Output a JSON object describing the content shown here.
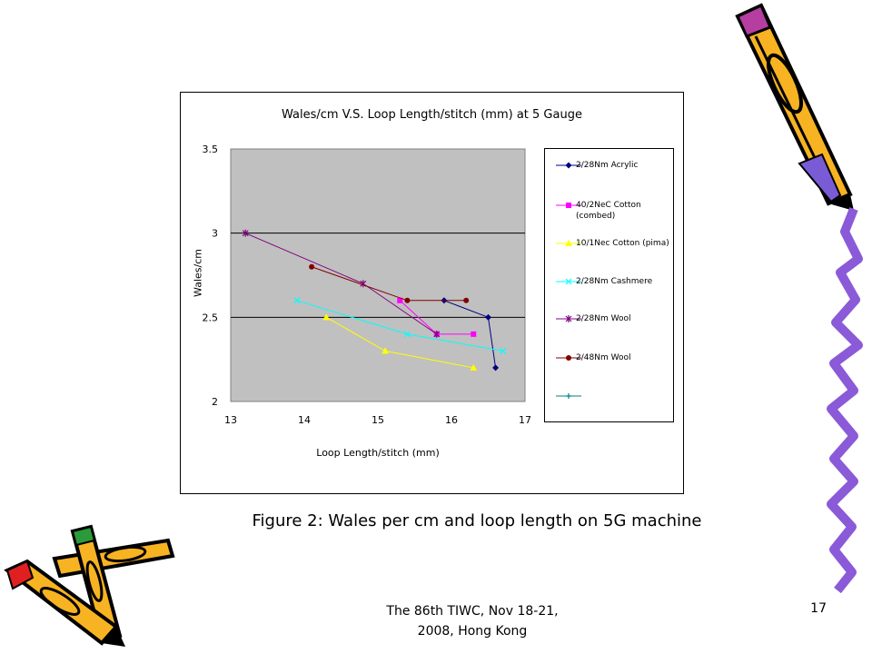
{
  "chart_data": {
    "type": "line",
    "title": "Wales/cm V.S. Loop Length/stitch (mm) at 5 Gauge",
    "xlabel": "Loop Length/stitch (mm)",
    "ylabel": "Wales/cm",
    "xlim": [
      13,
      17
    ],
    "ylim": [
      2,
      3.5
    ],
    "xticks": [
      "13",
      "14",
      "15",
      "16",
      "17"
    ],
    "yticks": [
      "2",
      "2.5",
      "3",
      "3.5"
    ],
    "grid": "horizontal",
    "legend": "right",
    "series": [
      {
        "name": "2/28Nm Acrylic",
        "color": "#000080",
        "marker": "diamond",
        "points": [
          [
            15.9,
            2.6
          ],
          [
            16.5,
            2.5
          ],
          [
            16.6,
            2.2
          ]
        ]
      },
      {
        "name": "40/2NeC Cotton (combed)",
        "color": "#ff00ff",
        "marker": "square",
        "points": [
          [
            15.3,
            2.6
          ],
          [
            15.8,
            2.4
          ],
          [
            16.3,
            2.4
          ]
        ]
      },
      {
        "name": "10/1Nec Cotton (pima)",
        "color": "#ffff00",
        "marker": "triangle",
        "points": [
          [
            14.3,
            2.5
          ],
          [
            15.1,
            2.3
          ],
          [
            16.3,
            2.2
          ]
        ]
      },
      {
        "name": "2/28Nm Cashmere",
        "color": "#00ffff",
        "marker": "x",
        "points": [
          [
            13.9,
            2.6
          ],
          [
            15.4,
            2.4
          ],
          [
            16.7,
            2.3
          ]
        ]
      },
      {
        "name": "2/28Nm Wool",
        "color": "#800080",
        "marker": "star",
        "points": [
          [
            13.2,
            3.0
          ],
          [
            14.8,
            2.7
          ],
          [
            15.8,
            2.4
          ]
        ]
      },
      {
        "name": "2/48Nm Wool",
        "color": "#800000",
        "marker": "circle",
        "points": [
          [
            14.1,
            2.8
          ],
          [
            15.4,
            2.6
          ],
          [
            16.2,
            2.6
          ]
        ]
      },
      {
        "name": "",
        "color": "#008080",
        "marker": "plus",
        "points": []
      }
    ]
  },
  "slide": {
    "caption": "Figure 2: Wales per cm and loop length on 5G machine",
    "footer_line1": "The 86th TIWC, Nov 18-21,",
    "footer_line2": "2008, Hong Kong",
    "page_number": "17"
  }
}
